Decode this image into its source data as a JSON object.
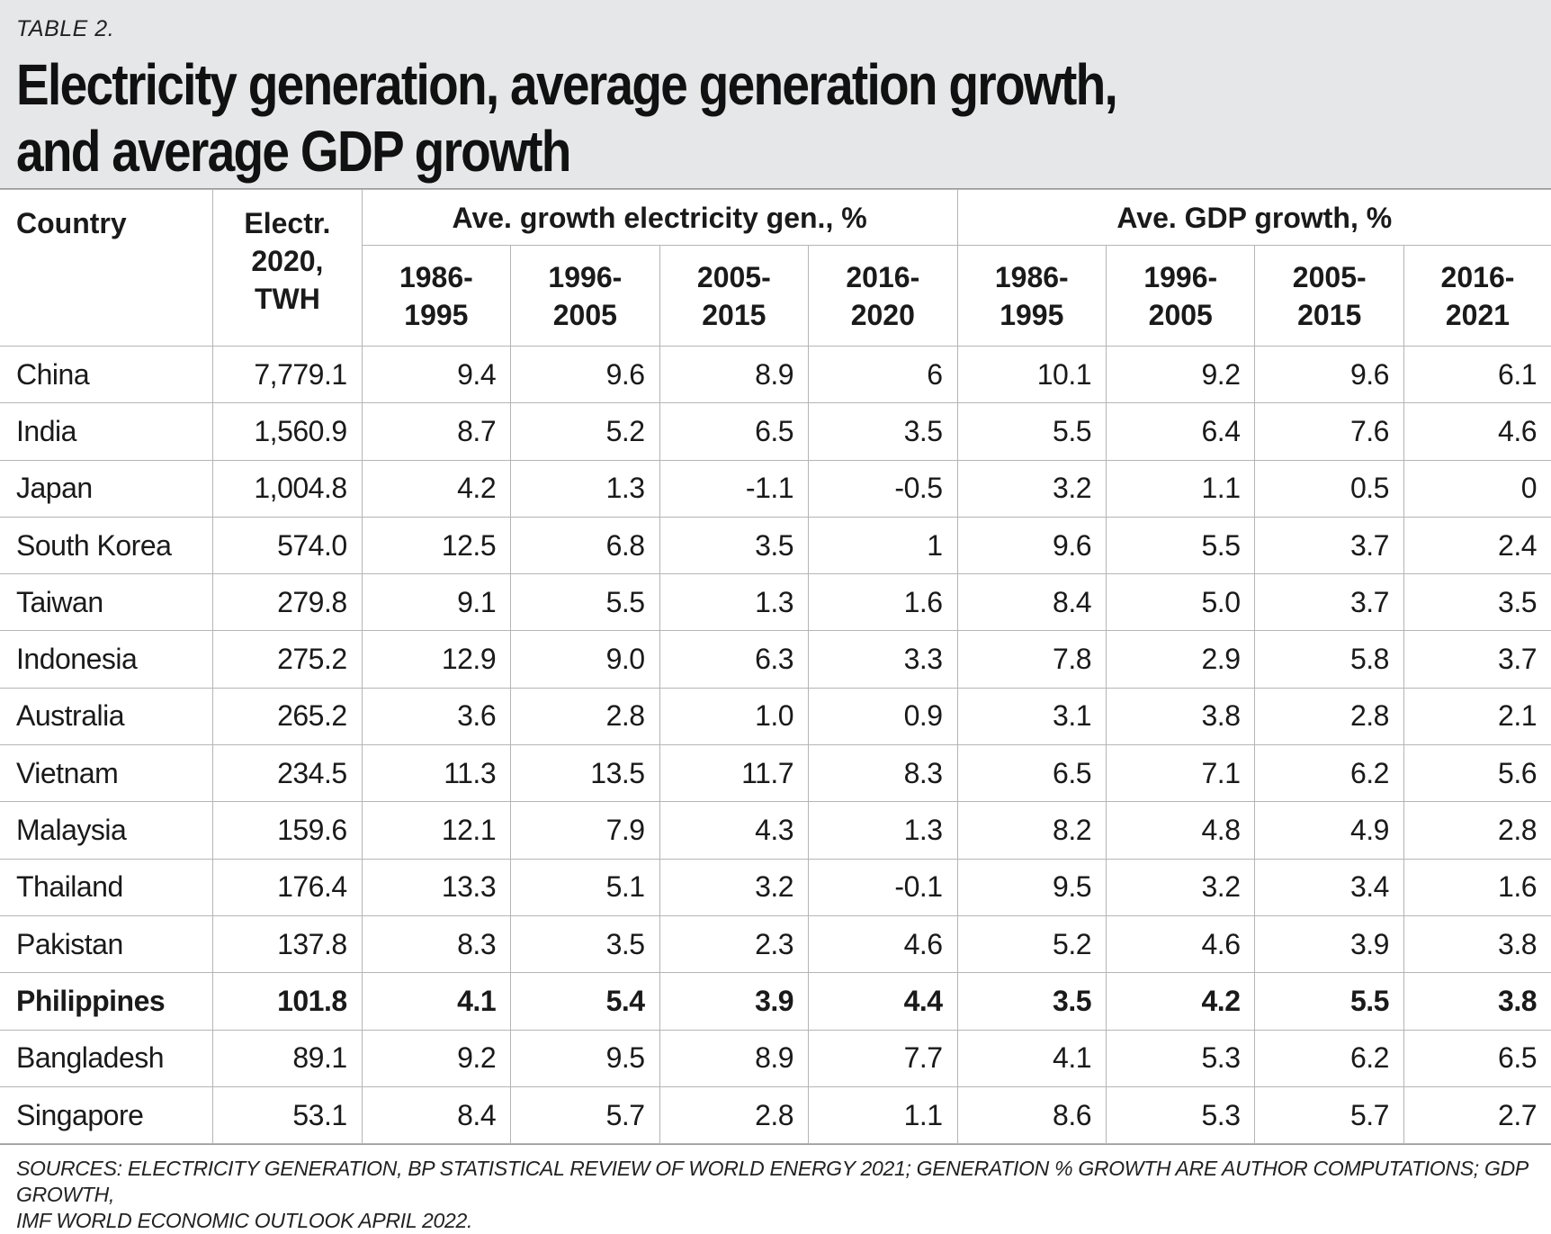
{
  "header": {
    "table_label": "TABLE 2.",
    "title_line1": "Electricity generation, average generation growth,",
    "title_line2": "and average GDP growth"
  },
  "columns": {
    "country": "Country",
    "electr_line1": "Electr.",
    "electr_line2": "2020,",
    "electr_line3": "TWH",
    "group_elec": "Ave. growth electricity gen., %",
    "group_gdp": "Ave. GDP growth, %",
    "elec_periods": [
      {
        "l1": "1986-",
        "l2": "1995"
      },
      {
        "l1": "1996-",
        "l2": "2005"
      },
      {
        "l1": "2005-",
        "l2": "2015"
      },
      {
        "l1": "2016-",
        "l2": "2020"
      }
    ],
    "gdp_periods": [
      {
        "l1": "1986-",
        "l2": "1995"
      },
      {
        "l1": "1996-",
        "l2": "2005"
      },
      {
        "l1": "2005-",
        "l2": "2015"
      },
      {
        "l1": "2016-",
        "l2": "2021"
      }
    ]
  },
  "rows": [
    {
      "country": "China",
      "electr": "7,779.1",
      "elec": [
        "9.4",
        "9.6",
        "8.9",
        "6"
      ],
      "gdp": [
        "10.1",
        "9.2",
        "9.6",
        "6.1"
      ],
      "bold": false
    },
    {
      "country": "India",
      "electr": "1,560.9",
      "elec": [
        "8.7",
        "5.2",
        "6.5",
        "3.5"
      ],
      "gdp": [
        "5.5",
        "6.4",
        "7.6",
        "4.6"
      ],
      "bold": false
    },
    {
      "country": "Japan",
      "electr": "1,004.8",
      "elec": [
        "4.2",
        "1.3",
        "-1.1",
        "-0.5"
      ],
      "gdp": [
        "3.2",
        "1.1",
        "0.5",
        "0"
      ],
      "bold": false
    },
    {
      "country": "South Korea",
      "electr": "574.0",
      "elec": [
        "12.5",
        "6.8",
        "3.5",
        "1"
      ],
      "gdp": [
        "9.6",
        "5.5",
        "3.7",
        "2.4"
      ],
      "bold": false
    },
    {
      "country": "Taiwan",
      "electr": "279.8",
      "elec": [
        "9.1",
        "5.5",
        "1.3",
        "1.6"
      ],
      "gdp": [
        "8.4",
        "5.0",
        "3.7",
        "3.5"
      ],
      "bold": false
    },
    {
      "country": "Indonesia",
      "electr": "275.2",
      "elec": [
        "12.9",
        "9.0",
        "6.3",
        "3.3"
      ],
      "gdp": [
        "7.8",
        "2.9",
        "5.8",
        "3.7"
      ],
      "bold": false
    },
    {
      "country": "Australia",
      "electr": "265.2",
      "elec": [
        "3.6",
        "2.8",
        "1.0",
        "0.9"
      ],
      "gdp": [
        "3.1",
        "3.8",
        "2.8",
        "2.1"
      ],
      "bold": false
    },
    {
      "country": "Vietnam",
      "electr": "234.5",
      "elec": [
        "11.3",
        "13.5",
        "11.7",
        "8.3"
      ],
      "gdp": [
        "6.5",
        "7.1",
        "6.2",
        "5.6"
      ],
      "bold": false
    },
    {
      "country": "Malaysia",
      "electr": "159.6",
      "elec": [
        "12.1",
        "7.9",
        "4.3",
        "1.3"
      ],
      "gdp": [
        "8.2",
        "4.8",
        "4.9",
        "2.8"
      ],
      "bold": false
    },
    {
      "country": "Thailand",
      "electr": "176.4",
      "elec": [
        "13.3",
        "5.1",
        "3.2",
        "-0.1"
      ],
      "gdp": [
        "9.5",
        "3.2",
        "3.4",
        "1.6"
      ],
      "bold": false
    },
    {
      "country": "Pakistan",
      "electr": "137.8",
      "elec": [
        "8.3",
        "3.5",
        "2.3",
        "4.6"
      ],
      "gdp": [
        "5.2",
        "4.6",
        "3.9",
        "3.8"
      ],
      "bold": false
    },
    {
      "country": "Philippines",
      "electr": "101.8",
      "elec": [
        "4.1",
        "5.4",
        "3.9",
        "4.4"
      ],
      "gdp": [
        "3.5",
        "4.2",
        "5.5",
        "3.8"
      ],
      "bold": true
    },
    {
      "country": "Bangladesh",
      "electr": "89.1",
      "elec": [
        "9.2",
        "9.5",
        "8.9",
        "7.7"
      ],
      "gdp": [
        "4.1",
        "5.3",
        "6.2",
        "6.5"
      ],
      "bold": false
    },
    {
      "country": "Singapore",
      "electr": "53.1",
      "elec": [
        "8.4",
        "5.7",
        "2.8",
        "1.1"
      ],
      "gdp": [
        "8.6",
        "5.3",
        "5.7",
        "2.7"
      ],
      "bold": false
    }
  ],
  "footer": {
    "sources_line1": "SOURCES: ELECTRICITY GENERATION, BP STATISTICAL REVIEW OF WORLD ENERGY 2021; GENERATION % GROWTH ARE AUTHOR COMPUTATIONS; GDP GROWTH,",
    "sources_line2": "IMF WORLD ECONOMIC OUTLOOK APRIL 2022."
  }
}
